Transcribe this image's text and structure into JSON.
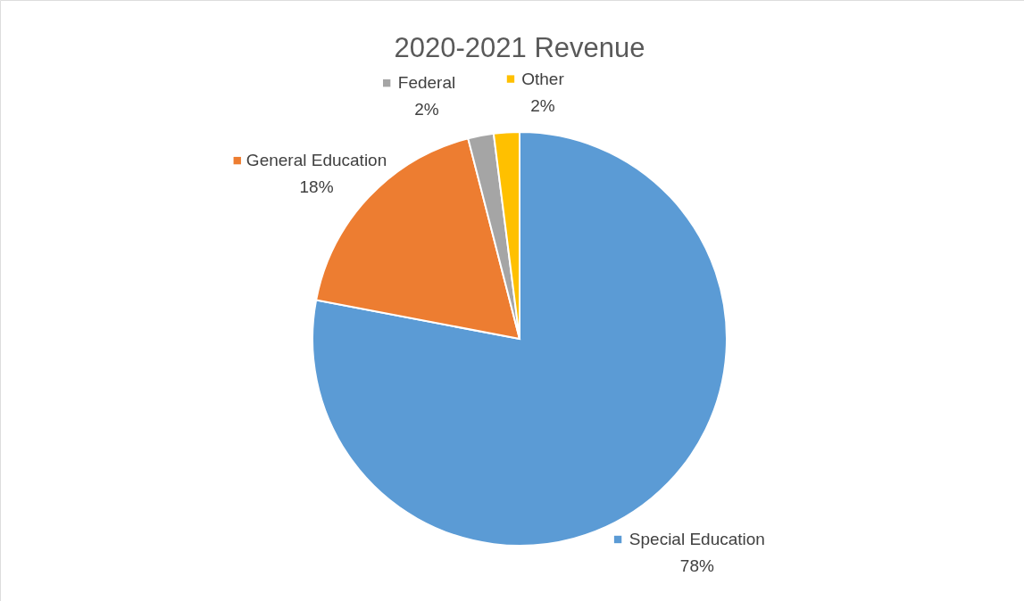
{
  "chart_data": {
    "type": "pie",
    "title": "2020-2021 Revenue",
    "categories": [
      "Special Education",
      "General Education",
      "Federal",
      "Other"
    ],
    "values": [
      78,
      18,
      2,
      2
    ],
    "value_labels": [
      "78%",
      "18%",
      "2%",
      "2%"
    ],
    "colors": [
      "#5b9bd5",
      "#ed7d31",
      "#a5a5a5",
      "#ffc000"
    ],
    "legend": "top"
  }
}
